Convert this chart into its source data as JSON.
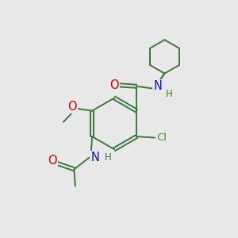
{
  "bg_color": "#e8e8e8",
  "bond_color": "#3a7a3a",
  "bond_width": 1.4,
  "dbl_sep": 0.07,
  "atom_colors": {
    "O": "#cc0000",
    "N": "#1111cc",
    "Cl": "#3a9a3a",
    "C": "#3a7a3a"
  },
  "fs_main": 9.5,
  "fs_small": 8.5
}
